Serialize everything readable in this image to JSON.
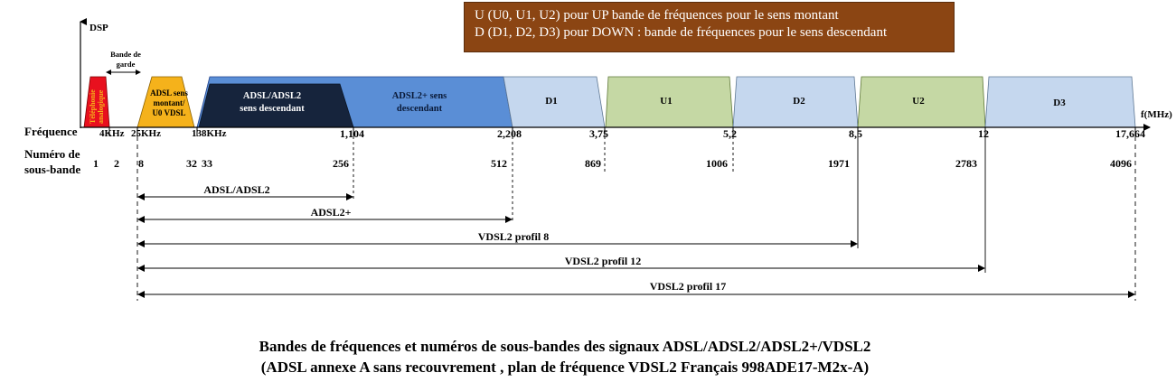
{
  "note": {
    "line1": "U (U0, U1, U2) pour UP bande de fréquences pour le sens montant",
    "line2": "D (D1, D2, D3) pour DOWN : bande de fréquences pour le sens descendant"
  },
  "axis": {
    "y_label": "DSP",
    "x_unit": "f(MHz)",
    "freq_row_label": "Fréquence",
    "subband_row_label_1": "Numéro de",
    "subband_row_label_2": "sous-bande"
  },
  "guard_band": {
    "line1": "Bande de",
    "line2": "garde"
  },
  "bands": {
    "telephone": {
      "line1": "Téléphonie",
      "line2": "analogique"
    },
    "adsl_up": {
      "line1": "ADSL sens",
      "line2": "montant/",
      "line3": "U0 VDSL"
    },
    "adsl_down": {
      "line1": "ADSL/ADSL2",
      "line2": "sens descendant"
    },
    "adsl2plus_down": {
      "line1": "ADSL2+ sens",
      "line2": "descendant"
    },
    "d1": "D1",
    "u1": "U1",
    "d2": "D2",
    "u2": "U2",
    "d3": "D3"
  },
  "frequencies": {
    "f_4k": "4KHz",
    "f_25k": "25KHz",
    "f_138k": "138KHz",
    "f_1104": "1,104",
    "f_2208": "2,208",
    "f_375": "3,75",
    "f_52": "5,2",
    "f_85": "8,5",
    "f_12": "12",
    "f_17664": "17,664"
  },
  "subbands": {
    "s1": "1",
    "s2": "2",
    "s8": "8",
    "s32": "32",
    "s33": "33",
    "s256": "256",
    "s512": "512",
    "s869": "869",
    "s1006": "1006",
    "s1971": "1971",
    "s2783": "2783",
    "s4096": "4096"
  },
  "ranges": {
    "adsl": "ADSL/ADSL2",
    "adsl2plus": "ADSL2+",
    "vdsl8": "VDSL2 profil 8",
    "vdsl12": "VDSL2 profil 12",
    "vdsl17": "VDSL2 profil 17"
  },
  "caption": {
    "line1": "Bandes de fréquences et numéros de sous-bandes des signaux ADSL/ADSL2/ADSL2+/VDSL2",
    "line2": "(ADSL annexe A sans recouvrement , plan de fréquence VDSL2 Français 998ADE17-M2x-A)"
  },
  "colors": {
    "telephone": "#e8101e",
    "adsl_up": "#f5b21b",
    "adsl_down": "#16243c",
    "adsl2plus": "#5a8ed6",
    "vdsl_down": "#c5d7ee",
    "vdsl_up": "#c5d8a4",
    "note_bg": "#8b4513"
  }
}
